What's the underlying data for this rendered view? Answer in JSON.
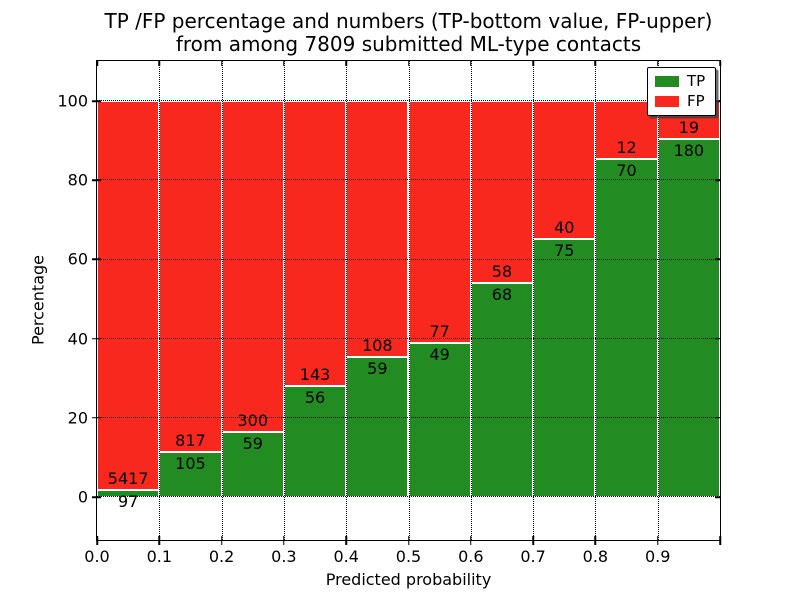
{
  "title": {
    "line1": "TP /FP percentage and numbers (TP-bottom value, FP-upper)",
    "line2": "from among 7809 submitted ML-type contacts"
  },
  "axes": {
    "xlabel": "Predicted probability",
    "ylabel": "Percentage",
    "x_tick_labels": [
      "0.0",
      "0.1",
      "0.2",
      "0.3",
      "0.4",
      "0.5",
      "0.6",
      "0.7",
      "0.8",
      "0.9"
    ],
    "x_tick_values": [
      0.0,
      0.1,
      0.2,
      0.3,
      0.4,
      0.5,
      0.6,
      0.7,
      0.8,
      0.9
    ],
    "y_tick_labels": [
      "0",
      "20",
      "40",
      "60",
      "80",
      "100"
    ],
    "y_tick_values": [
      0,
      20,
      40,
      60,
      80,
      100
    ],
    "xlim": [
      0.0,
      1.0
    ],
    "ylim": [
      -10.8,
      110.1
    ],
    "grid_style": "dotted",
    "grid_color": "#000000"
  },
  "legend": {
    "position": "upper right",
    "items": [
      {
        "label": "TP",
        "color": "#228b22"
      },
      {
        "label": "FP",
        "color": "#f8281e"
      }
    ]
  },
  "chart_data": {
    "type": "bar",
    "stacked": true,
    "normalized_total": 100,
    "total_submitted_contacts": 7809,
    "bin_starts": [
      0.0,
      0.1,
      0.2,
      0.3,
      0.4,
      0.5,
      0.6,
      0.7,
      0.8,
      0.9
    ],
    "bin_width": 0.1,
    "series": [
      {
        "name": "TP",
        "color": "#228b22",
        "counts": [
          97,
          105,
          59,
          56,
          59,
          49,
          68,
          75,
          70,
          180
        ],
        "percent": [
          1.76,
          11.39,
          16.43,
          28.14,
          35.33,
          38.89,
          53.97,
          65.22,
          85.37,
          90.45
        ]
      },
      {
        "name": "FP",
        "color": "#f8281e",
        "counts": [
          5417,
          817,
          300,
          143,
          108,
          77,
          58,
          40,
          12,
          19
        ],
        "percent": [
          98.24,
          88.61,
          83.57,
          71.86,
          64.67,
          61.11,
          46.03,
          34.78,
          14.63,
          9.55
        ]
      }
    ],
    "label_rule": "TP count below segment boundary, FP count above segment boundary"
  }
}
